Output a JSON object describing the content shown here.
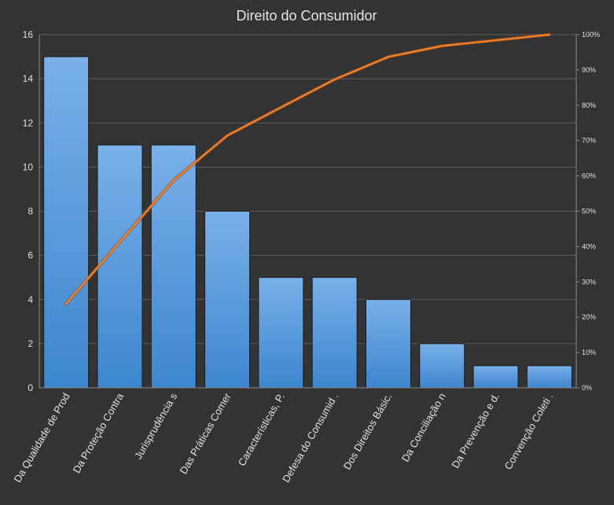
{
  "chart_data": {
    "type": "bar",
    "title": "Direito do Consumidor",
    "categories": [
      "Da Qualidade de Prod",
      "Da Proteção Contra",
      "Jurisprudência  s",
      "Das Práticas Comer",
      "Características, P.",
      "Defesa do Consumid .",
      "Dos Direitos Básic.",
      "Da Conciliação n",
      "Da Prevenção e d.",
      "Convenção Coleti ."
    ],
    "series": [
      {
        "type": "bar",
        "values": [
          15,
          11,
          11,
          8,
          5,
          5,
          4,
          2,
          1,
          1
        ],
        "color": "#5a9ee0"
      },
      {
        "type": "line",
        "axis": "right",
        "values": [
          23.8,
          41.3,
          58.7,
          71.4,
          79.4,
          87.3,
          93.7,
          96.8,
          98.4,
          100
        ],
        "color": "#f07f2a"
      }
    ],
    "ylim": [
      0,
      16
    ],
    "yticks": [
      "0",
      "2",
      "4",
      "6",
      "8",
      "10",
      "12",
      "14",
      "16"
    ],
    "y2lim": [
      0,
      100
    ],
    "y2ticks": [
      "0%",
      "10%",
      "20%",
      "30%",
      "40%",
      "50%",
      "60%",
      "70%",
      "80%",
      "90%",
      "100%"
    ],
    "grid": true,
    "background": "#333333"
  }
}
